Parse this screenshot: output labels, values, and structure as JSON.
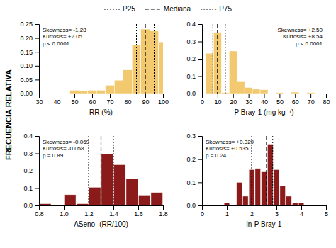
{
  "chart_data": [
    {
      "type": "bar",
      "xlabel": "RR (%)",
      "color": "#F2C96E",
      "x": [
        50,
        55,
        60,
        65,
        70,
        75,
        80,
        85,
        90,
        95,
        100
      ],
      "values": [
        0.012,
        0.01,
        0.012,
        0.012,
        0.03,
        0.048,
        0.085,
        0.175,
        0.232,
        0.225,
        0.186
      ],
      "bar_width": 5,
      "xlim": [
        30,
        100
      ],
      "ylim": [
        0,
        0.25
      ],
      "xticks": [
        30,
        40,
        50,
        60,
        70,
        80,
        90,
        100
      ],
      "yticks": [
        {
          "value": 0.0,
          "label": "0.00"
        },
        0.05,
        {
          "value": 0.1,
          "label": "0.10"
        },
        0.15,
        {
          "value": 0.2,
          "label": "0.20"
        },
        0.25
      ],
      "vlines": [
        {
          "name": "P25",
          "value": 85,
          "line_style": "dotted"
        },
        {
          "name": "Mediana",
          "value": 90,
          "line_style": "dashed"
        },
        {
          "name": "P75",
          "value": 95,
          "line_style": "dotted"
        }
      ],
      "annotation": "Skewness= -1.28\nKurtosis= +2.05\np < 0.0001"
    },
    {
      "type": "bar",
      "xlabel": "P Bray-1 (mg kg⁻¹)",
      "color": "#F2C96E",
      "x": [
        5,
        10,
        15,
        20,
        25,
        30,
        35,
        40,
        50,
        60,
        70
      ],
      "values": [
        0.232,
        0.352,
        0.005,
        0.245,
        0.068,
        0.035,
        0.025,
        0.022,
        0.005,
        0.008,
        0.005
      ],
      "bar_width": 5,
      "xlim": [
        0,
        80
      ],
      "ylim": [
        0,
        0.4
      ],
      "xticks": [
        0,
        10,
        20,
        30,
        40,
        50,
        60,
        70,
        80
      ],
      "yticks": [
        {
          "value": 0.0,
          "label": "0.0"
        },
        0.1,
        0.2,
        0.3,
        0.4
      ],
      "vlines": [
        {
          "name": "P25",
          "value": 7,
          "line_style": "dotted"
        },
        {
          "name": "Mediana",
          "value": 10,
          "line_style": "dashed"
        },
        {
          "name": "P75",
          "value": 15,
          "line_style": "dotted"
        }
      ],
      "annotation": "Skewness= +2.50\nKurtosis= +8.54\np < 0.0001"
    },
    {
      "type": "bar",
      "xlabel": "ASeno- (RR/100)",
      "color": "#8B1A1A",
      "x": [
        0.85,
        0.95,
        1.05,
        1.15,
        1.25,
        1.35,
        1.45,
        1.55,
        1.65,
        1.75
      ],
      "values": [
        0.01,
        0.0,
        0.062,
        0.01,
        0.105,
        0.295,
        0.235,
        0.155,
        0.06,
        0.075
      ],
      "bar_width": 0.095,
      "xlim": [
        0.8,
        1.8
      ],
      "ylim": [
        0,
        0.4
      ],
      "xticks": [
        0.8,
        {
          "value": 1.0,
          "label": "1.0"
        },
        1.2,
        1.4,
        1.6,
        1.8
      ],
      "yticks": [
        {
          "value": 0.0,
          "label": "0.0"
        },
        0.1,
        0.2,
        0.3,
        0.4
      ],
      "vlines": [
        {
          "name": "P25",
          "value": 1.2,
          "line_style": "dotted"
        },
        {
          "name": "Mediana",
          "value": 1.3,
          "line_style": "dashed"
        },
        {
          "name": "P75",
          "value": 1.4,
          "line_style": "dotted"
        }
      ],
      "annotation": "Skewness= -0.069\nKurtosis= -0.058\np = 0.89"
    },
    {
      "type": "bar",
      "xlabel": "ln-P Bray-1",
      "color": "#8B1A1A",
      "x": [
        0.5,
        1.0,
        1.5,
        1.75,
        2.0,
        2.25,
        2.5,
        2.75,
        3.0,
        3.25,
        3.5,
        3.75,
        4.0,
        4.5
      ],
      "values": [
        0.0,
        0.01,
        0.1,
        0.04,
        0.155,
        0.16,
        0.145,
        0.265,
        0.155,
        0.085,
        0.04,
        0.01,
        0.01,
        0.0
      ],
      "bar_width": 0.22,
      "xlim": [
        0,
        5
      ],
      "ylim": [
        0,
        0.3
      ],
      "xticks": [
        0,
        1,
        2,
        3,
        4,
        5
      ],
      "yticks": [
        {
          "value": 0.0,
          "label": "0.0"
        },
        0.1,
        0.2,
        0.3
      ],
      "vlines": [
        {
          "name": "P25",
          "value": 2.0,
          "line_style": "dotted"
        },
        {
          "name": "Mediana",
          "value": 2.6,
          "line_style": "dashed"
        },
        {
          "name": "P75",
          "value": 2.85,
          "line_style": "dotted"
        }
      ],
      "annotation": "Skewness= +0.329\nKurtosis= +0.535\np = 0.24"
    }
  ],
  "ylabel": "FRECUENCIA RELATIVA",
  "legend": "top"
}
